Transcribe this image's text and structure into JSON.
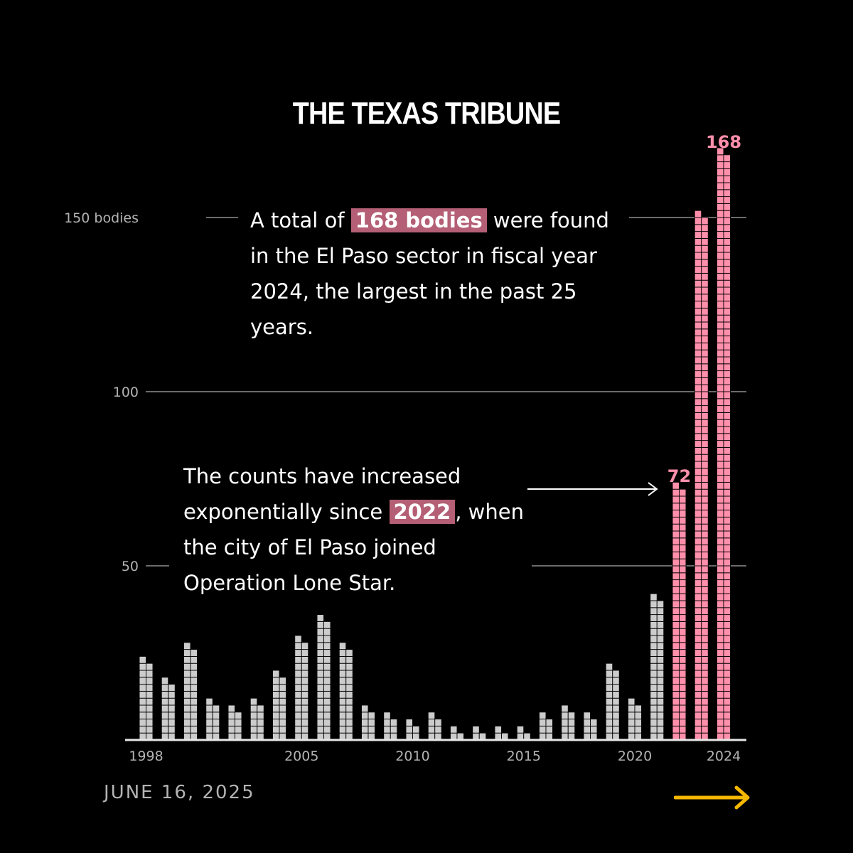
{
  "header": {
    "brand": "THE TEXAS TRIBUNE"
  },
  "annotations": {
    "a1_pre": "A total of ",
    "a1_hl": "168 bodies",
    "a1_post": " were found in the El Paso sector in fiscal year 2024, the largest in the past 25 years.",
    "a2_pre": "The counts have increased exponentially since ",
    "a2_hl": "2022",
    "a2_post": ", when the city of El Paso joined Operation Lone Star."
  },
  "footer": {
    "date": "JUNE 16, 2025"
  },
  "colors": {
    "gray_bar": "#cccccc",
    "pink_bar": "#ff8fab",
    "highlight": "#b45f75",
    "arrow": "#f5b800"
  },
  "chart_data": {
    "type": "bar",
    "ylim": [
      0,
      170
    ],
    "yticks": [
      {
        "value": 50,
        "label": "50"
      },
      {
        "value": 100,
        "label": "100"
      },
      {
        "value": 150,
        "label": "150 bodies"
      }
    ],
    "xticks": [
      {
        "value": 1998,
        "label": "1998"
      },
      {
        "value": 2005,
        "label": "2005"
      },
      {
        "value": 2010,
        "label": "2010"
      },
      {
        "value": 2015,
        "label": "2015"
      },
      {
        "value": 2020,
        "label": "2020"
      },
      {
        "value": 2024,
        "label": "2024"
      }
    ],
    "x": [
      1998,
      1999,
      2000,
      2001,
      2002,
      2003,
      2004,
      2005,
      2006,
      2007,
      2008,
      2009,
      2010,
      2011,
      2012,
      2013,
      2014,
      2015,
      2016,
      2017,
      2018,
      2019,
      2020,
      2021,
      2022,
      2023,
      2024
    ],
    "values": [
      22,
      16,
      26,
      10,
      8,
      10,
      18,
      28,
      34,
      26,
      8,
      6,
      4,
      6,
      2,
      2,
      2,
      2,
      6,
      8,
      6,
      20,
      10,
      40,
      72,
      150,
      168
    ],
    "highlight_from": 2022,
    "labels": [
      {
        "x": 2022,
        "text": "72"
      },
      {
        "x": 2024,
        "text": "168"
      }
    ]
  }
}
